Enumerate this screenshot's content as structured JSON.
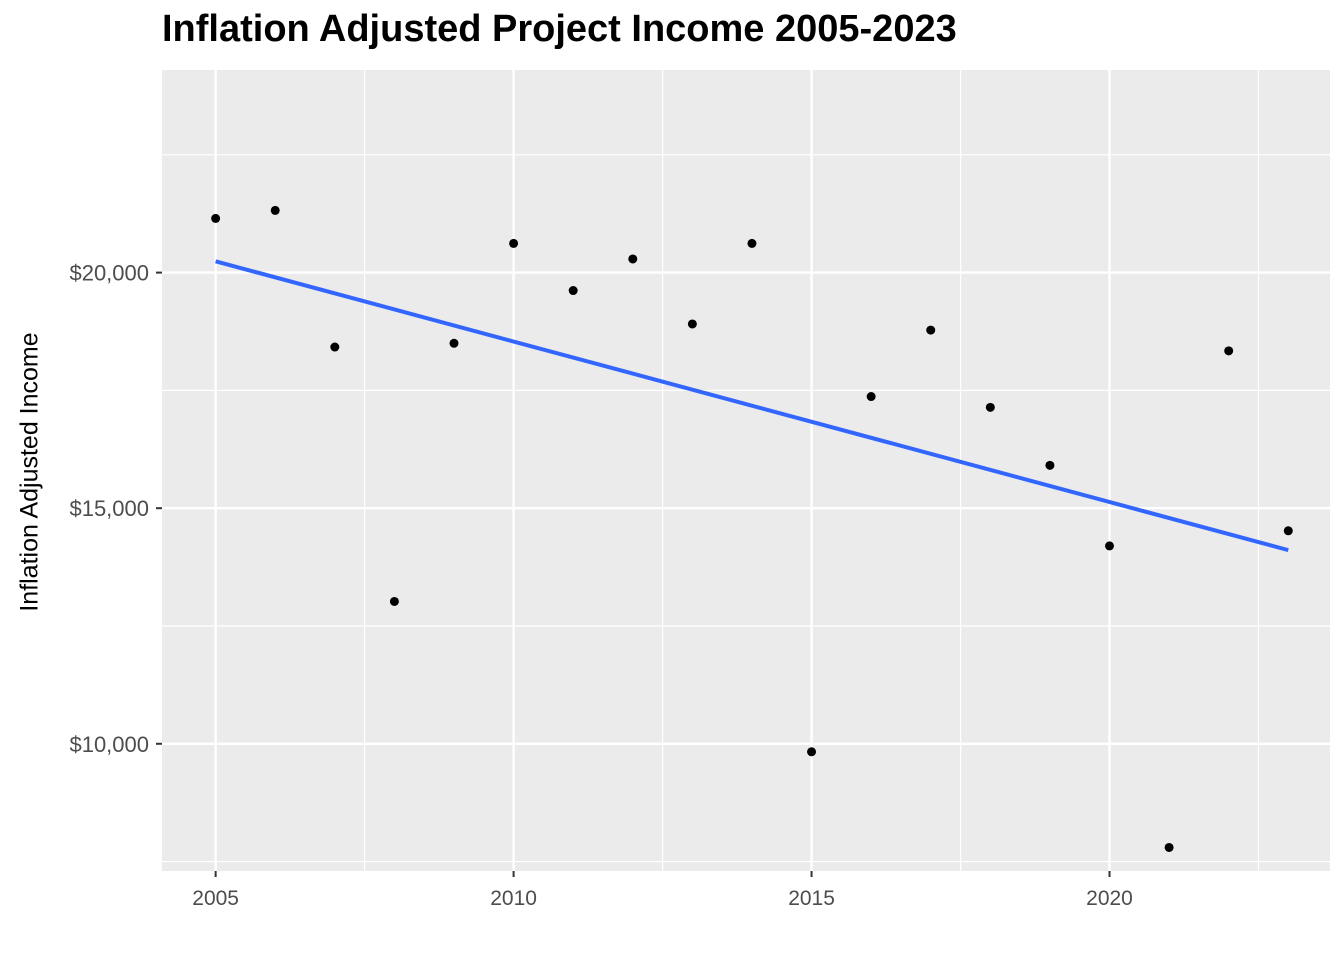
{
  "chart_data": {
    "type": "scatter",
    "title": "Inflation Adjusted Project Income 2005-2023",
    "xlabel": "",
    "ylabel": "Inflation Adjusted Income",
    "xlim": [
      2004.1,
      2023.7
    ],
    "ylim": [
      7300,
      24300
    ],
    "x_ticks": [
      2005,
      2010,
      2015,
      2020
    ],
    "x_tick_labels": [
      "2005",
      "2010",
      "2015",
      "2020"
    ],
    "y_ticks": [
      10000,
      15000,
      20000
    ],
    "y_tick_labels": [
      "$10,000",
      "$15,000",
      "$20,000"
    ],
    "grid": true,
    "legend": "none",
    "series": [
      {
        "type": "scatter",
        "x": [
          2005,
          2006,
          2007,
          2008,
          2009,
          2010,
          2011,
          2012,
          2013,
          2014,
          2015,
          2016,
          2017,
          2018,
          2019,
          2020,
          2021,
          2022,
          2023
        ],
        "y": [
          21150,
          21320,
          18420,
          13020,
          18500,
          20620,
          19620,
          20290,
          18910,
          20620,
          9830,
          17370,
          18780,
          17140,
          15910,
          14200,
          7800,
          18340,
          14520
        ]
      },
      {
        "type": "line",
        "x": [
          2005,
          2023
        ],
        "y": [
          20240,
          14110
        ]
      }
    ],
    "colors": {
      "panel": "#EBEBEB",
      "grid": "#FFFFFF",
      "points": "#000000",
      "fit_line": "#3366FF"
    }
  }
}
